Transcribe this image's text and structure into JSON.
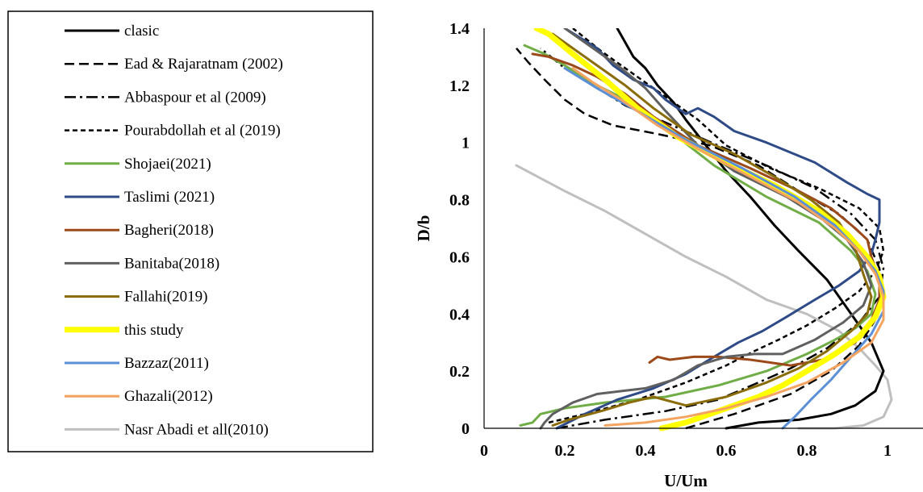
{
  "chart_data": {
    "type": "line",
    "xlabel": "U/Um",
    "ylabel": "D/b",
    "xlim": [
      0,
      1.2
    ],
    "ylim": [
      0,
      1.4
    ],
    "xticks": [
      "0",
      "0.2",
      "0.4",
      "0.6",
      "0.8",
      "1"
    ],
    "yticks": [
      "0",
      "0.2",
      "0.4",
      "0.6",
      "0.8",
      "1",
      "1.2",
      "1.4"
    ],
    "grid": false,
    "legend_position": "left",
    "series": [
      {
        "name": "clasic",
        "color": "#000000",
        "dash": "solid",
        "width": 3,
        "points": [
          [
            0.6,
            0.0
          ],
          [
            0.68,
            0.02
          ],
          [
            0.78,
            0.03
          ],
          [
            0.86,
            0.05
          ],
          [
            0.92,
            0.08
          ],
          [
            0.97,
            0.13
          ],
          [
            0.99,
            0.2
          ],
          [
            0.96,
            0.3
          ],
          [
            0.9,
            0.42
          ],
          [
            0.85,
            0.52
          ],
          [
            0.78,
            0.62
          ],
          [
            0.72,
            0.71
          ],
          [
            0.66,
            0.81
          ],
          [
            0.6,
            0.9
          ],
          [
            0.55,
            0.99
          ],
          [
            0.5,
            1.08
          ],
          [
            0.47,
            1.14
          ],
          [
            0.43,
            1.2
          ],
          [
            0.4,
            1.26
          ],
          [
            0.37,
            1.3
          ],
          [
            0.33,
            1.4
          ]
        ]
      },
      {
        "name": "Ead & Rajaratnam (2002)",
        "color": "#000000",
        "dash": "12,6",
        "width": 2.5,
        "points": [
          [
            0.5,
            0.0
          ],
          [
            0.62,
            0.05
          ],
          [
            0.76,
            0.12
          ],
          [
            0.86,
            0.2
          ],
          [
            0.93,
            0.29
          ],
          [
            0.97,
            0.38
          ],
          [
            0.99,
            0.46
          ],
          [
            0.98,
            0.56
          ],
          [
            0.95,
            0.66
          ],
          [
            0.88,
            0.75
          ],
          [
            0.78,
            0.83
          ],
          [
            0.68,
            0.92
          ],
          [
            0.56,
            0.99
          ],
          [
            0.43,
            1.03
          ],
          [
            0.32,
            1.06
          ],
          [
            0.25,
            1.1
          ],
          [
            0.2,
            1.15
          ],
          [
            0.15,
            1.22
          ],
          [
            0.11,
            1.28
          ],
          [
            0.08,
            1.33
          ]
        ]
      },
      {
        "name": "Abbaspour et al (2009)",
        "color": "#000000",
        "dash": "14,5,3,5",
        "width": 2.5,
        "points": [
          [
            0.18,
            0.0
          ],
          [
            0.3,
            0.03
          ],
          [
            0.45,
            0.06
          ],
          [
            0.58,
            0.1
          ],
          [
            0.68,
            0.16
          ],
          [
            0.76,
            0.21
          ],
          [
            0.85,
            0.28
          ],
          [
            0.93,
            0.37
          ],
          [
            0.98,
            0.46
          ],
          [
            0.99,
            0.56
          ],
          [
            0.97,
            0.66
          ],
          [
            0.91,
            0.75
          ],
          [
            0.82,
            0.84
          ],
          [
            0.7,
            0.92
          ],
          [
            0.58,
            0.99
          ],
          [
            0.45,
            1.07
          ],
          [
            0.35,
            1.13
          ],
          [
            0.27,
            1.2
          ],
          [
            0.2,
            1.26
          ],
          [
            0.14,
            1.33
          ]
        ]
      },
      {
        "name": "Pourabdollah et al (2019)",
        "color": "#000000",
        "dash": "6,4",
        "width": 2.5,
        "points": [
          [
            0.16,
            0.02
          ],
          [
            0.25,
            0.05
          ],
          [
            0.38,
            0.1
          ],
          [
            0.5,
            0.16
          ],
          [
            0.6,
            0.22
          ],
          [
            0.67,
            0.27
          ],
          [
            0.73,
            0.31
          ],
          [
            0.8,
            0.36
          ],
          [
            0.87,
            0.42
          ],
          [
            0.93,
            0.48
          ],
          [
            0.97,
            0.55
          ],
          [
            0.99,
            0.62
          ],
          [
            0.98,
            0.7
          ],
          [
            0.93,
            0.77
          ],
          [
            0.83,
            0.84
          ],
          [
            0.71,
            0.91
          ],
          [
            0.6,
            0.99
          ],
          [
            0.53,
            1.08
          ],
          [
            0.45,
            1.16
          ],
          [
            0.37,
            1.24
          ],
          [
            0.29,
            1.32
          ],
          [
            0.22,
            1.4
          ]
        ]
      },
      {
        "name": "Shojaei(2021)",
        "color": "#70ad47",
        "dash": "solid",
        "width": 3,
        "points": [
          [
            0.09,
            0.01
          ],
          [
            0.12,
            0.02
          ],
          [
            0.14,
            0.05
          ],
          [
            0.2,
            0.07
          ],
          [
            0.3,
            0.09
          ],
          [
            0.45,
            0.11
          ],
          [
            0.58,
            0.15
          ],
          [
            0.7,
            0.2
          ],
          [
            0.8,
            0.26
          ],
          [
            0.87,
            0.31
          ],
          [
            0.92,
            0.35
          ],
          [
            0.96,
            0.4
          ],
          [
            0.97,
            0.47
          ],
          [
            0.95,
            0.55
          ],
          [
            0.91,
            0.62
          ],
          [
            0.83,
            0.72
          ],
          [
            0.7,
            0.81
          ],
          [
            0.57,
            0.92
          ],
          [
            0.47,
            1.03
          ],
          [
            0.38,
            1.13
          ],
          [
            0.28,
            1.2
          ],
          [
            0.2,
            1.27
          ],
          [
            0.15,
            1.31
          ],
          [
            0.1,
            1.34
          ]
        ]
      },
      {
        "name": "Taslimi (2021)",
        "color": "#2f4b87",
        "dash": "solid",
        "width": 3,
        "points": [
          [
            0.18,
            0.0
          ],
          [
            0.25,
            0.05
          ],
          [
            0.33,
            0.1
          ],
          [
            0.42,
            0.14
          ],
          [
            0.5,
            0.19
          ],
          [
            0.57,
            0.25
          ],
          [
            0.63,
            0.3
          ],
          [
            0.69,
            0.34
          ],
          [
            0.75,
            0.39
          ],
          [
            0.82,
            0.45
          ],
          [
            0.88,
            0.5
          ],
          [
            0.93,
            0.55
          ],
          [
            0.96,
            0.61
          ],
          [
            0.97,
            0.66
          ],
          [
            0.98,
            0.72
          ],
          [
            0.98,
            0.8
          ],
          [
            0.95,
            0.82
          ],
          [
            0.9,
            0.86
          ],
          [
            0.82,
            0.93
          ],
          [
            0.7,
            1.0
          ],
          [
            0.62,
            1.04
          ],
          [
            0.57,
            1.09
          ],
          [
            0.53,
            1.12
          ],
          [
            0.5,
            1.1
          ],
          [
            0.45,
            1.15
          ],
          [
            0.42,
            1.19
          ],
          [
            0.37,
            1.22
          ],
          [
            0.32,
            1.27
          ],
          [
            0.28,
            1.33
          ],
          [
            0.2,
            1.4
          ]
        ]
      },
      {
        "name": "Bagheri(2018)",
        "color": "#9c4a1a",
        "dash": "solid",
        "width": 3,
        "points": [
          [
            0.41,
            0.23
          ],
          [
            0.43,
            0.25
          ],
          [
            0.46,
            0.24
          ],
          [
            0.52,
            0.25
          ],
          [
            0.58,
            0.25
          ],
          [
            0.66,
            0.24
          ],
          [
            0.76,
            0.22
          ],
          [
            0.84,
            0.24
          ],
          [
            0.92,
            0.3
          ],
          [
            0.96,
            0.38
          ],
          [
            0.98,
            0.45
          ],
          [
            0.98,
            0.52
          ],
          [
            0.96,
            0.6
          ],
          [
            0.95,
            0.66
          ],
          [
            0.92,
            0.7
          ],
          [
            0.86,
            0.77
          ],
          [
            0.78,
            0.83
          ],
          [
            0.66,
            0.91
          ],
          [
            0.53,
            0.99
          ],
          [
            0.42,
            1.09
          ],
          [
            0.35,
            1.17
          ],
          [
            0.28,
            1.23
          ],
          [
            0.22,
            1.27
          ],
          [
            0.16,
            1.3
          ],
          [
            0.12,
            1.31
          ]
        ]
      },
      {
        "name": "Banitaba(2018)",
        "color": "#606060",
        "dash": "solid",
        "width": 3,
        "points": [
          [
            0.14,
            0.0
          ],
          [
            0.15,
            0.02
          ],
          [
            0.17,
            0.05
          ],
          [
            0.22,
            0.09
          ],
          [
            0.28,
            0.12
          ],
          [
            0.34,
            0.13
          ],
          [
            0.4,
            0.14
          ],
          [
            0.47,
            0.17
          ],
          [
            0.53,
            0.22
          ],
          [
            0.6,
            0.25
          ],
          [
            0.67,
            0.26
          ],
          [
            0.74,
            0.26
          ],
          [
            0.82,
            0.31
          ],
          [
            0.89,
            0.37
          ],
          [
            0.94,
            0.43
          ],
          [
            0.96,
            0.5
          ],
          [
            0.94,
            0.58
          ],
          [
            0.9,
            0.66
          ],
          [
            0.84,
            0.73
          ],
          [
            0.75,
            0.81
          ],
          [
            0.62,
            0.9
          ],
          [
            0.53,
            0.99
          ],
          [
            0.45,
            1.11
          ],
          [
            0.4,
            1.19
          ],
          [
            0.34,
            1.26
          ],
          [
            0.27,
            1.33
          ],
          [
            0.2,
            1.4
          ]
        ]
      },
      {
        "name": "Fallahi(2019)",
        "color": "#8b6c0a",
        "dash": "solid",
        "width": 3,
        "points": [
          [
            0.17,
            0.01
          ],
          [
            0.21,
            0.03
          ],
          [
            0.29,
            0.06
          ],
          [
            0.36,
            0.09
          ],
          [
            0.42,
            0.11
          ],
          [
            0.5,
            0.08
          ],
          [
            0.6,
            0.11
          ],
          [
            0.7,
            0.16
          ],
          [
            0.78,
            0.21
          ],
          [
            0.85,
            0.27
          ],
          [
            0.91,
            0.34
          ],
          [
            0.95,
            0.4
          ],
          [
            0.96,
            0.46
          ],
          [
            0.94,
            0.54
          ],
          [
            0.92,
            0.63
          ],
          [
            0.88,
            0.72
          ],
          [
            0.81,
            0.8
          ],
          [
            0.72,
            0.88
          ],
          [
            0.62,
            0.96
          ],
          [
            0.51,
            1.03
          ],
          [
            0.42,
            1.12
          ],
          [
            0.35,
            1.2
          ],
          [
            0.28,
            1.27
          ],
          [
            0.22,
            1.33
          ],
          [
            0.17,
            1.38
          ]
        ]
      },
      {
        "name": "this study",
        "color": "#ffff00",
        "dash": "solid",
        "width": 7,
        "points": [
          [
            0.44,
            0.0
          ],
          [
            0.5,
            0.02
          ],
          [
            0.56,
            0.05
          ],
          [
            0.62,
            0.08
          ],
          [
            0.68,
            0.11
          ],
          [
            0.74,
            0.15
          ],
          [
            0.8,
            0.2
          ],
          [
            0.87,
            0.26
          ],
          [
            0.93,
            0.32
          ],
          [
            0.97,
            0.39
          ],
          [
            0.99,
            0.46
          ],
          [
            0.98,
            0.53
          ],
          [
            0.95,
            0.6
          ],
          [
            0.9,
            0.68
          ],
          [
            0.83,
            0.76
          ],
          [
            0.72,
            0.85
          ],
          [
            0.6,
            0.93
          ],
          [
            0.48,
            1.02
          ],
          [
            0.38,
            1.12
          ],
          [
            0.3,
            1.22
          ],
          [
            0.22,
            1.31
          ],
          [
            0.16,
            1.38
          ],
          [
            0.13,
            1.4
          ]
        ]
      },
      {
        "name": "Bazzaz(2011)",
        "color": "#5b8fd6",
        "dash": "solid",
        "width": 3,
        "points": [
          [
            0.74,
            0.0
          ],
          [
            0.77,
            0.04
          ],
          [
            0.81,
            0.1
          ],
          [
            0.86,
            0.17
          ],
          [
            0.91,
            0.25
          ],
          [
            0.96,
            0.33
          ],
          [
            0.99,
            0.41
          ],
          [
            0.99,
            0.48
          ],
          [
            0.97,
            0.55
          ],
          [
            0.93,
            0.62
          ],
          [
            0.87,
            0.71
          ],
          [
            0.77,
            0.81
          ],
          [
            0.64,
            0.91
          ],
          [
            0.5,
            1.01
          ],
          [
            0.38,
            1.11
          ],
          [
            0.28,
            1.19
          ],
          [
            0.2,
            1.26
          ]
        ]
      },
      {
        "name": "Ghazali(2012)",
        "color": "#f4a460",
        "dash": "solid",
        "width": 3,
        "points": [
          [
            0.3,
            0.01
          ],
          [
            0.4,
            0.02
          ],
          [
            0.5,
            0.04
          ],
          [
            0.6,
            0.07
          ],
          [
            0.7,
            0.11
          ],
          [
            0.8,
            0.16
          ],
          [
            0.89,
            0.23
          ],
          [
            0.96,
            0.3
          ],
          [
            0.99,
            0.38
          ],
          [
            0.99,
            0.46
          ],
          [
            0.97,
            0.54
          ],
          [
            0.93,
            0.62
          ],
          [
            0.87,
            0.7
          ],
          [
            0.78,
            0.79
          ],
          [
            0.66,
            0.88
          ],
          [
            0.54,
            0.97
          ],
          [
            0.43,
            1.06
          ],
          [
            0.34,
            1.15
          ],
          [
            0.27,
            1.21
          ],
          [
            0.22,
            1.26
          ]
        ]
      },
      {
        "name": "Nasr Abadi et all(2010)",
        "color": "#bfbfbf",
        "dash": "solid",
        "width": 3,
        "points": [
          [
            0.78,
            0.0
          ],
          [
            0.87,
            0.0
          ],
          [
            0.94,
            0.01
          ],
          [
            0.99,
            0.04
          ],
          [
            1.01,
            0.1
          ],
          [
            1.0,
            0.17
          ],
          [
            0.97,
            0.22
          ],
          [
            0.93,
            0.28
          ],
          [
            0.88,
            0.34
          ],
          [
            0.8,
            0.4
          ],
          [
            0.7,
            0.45
          ],
          [
            0.6,
            0.53
          ],
          [
            0.5,
            0.6
          ],
          [
            0.4,
            0.68
          ],
          [
            0.3,
            0.76
          ],
          [
            0.2,
            0.83
          ],
          [
            0.08,
            0.92
          ]
        ]
      }
    ]
  }
}
